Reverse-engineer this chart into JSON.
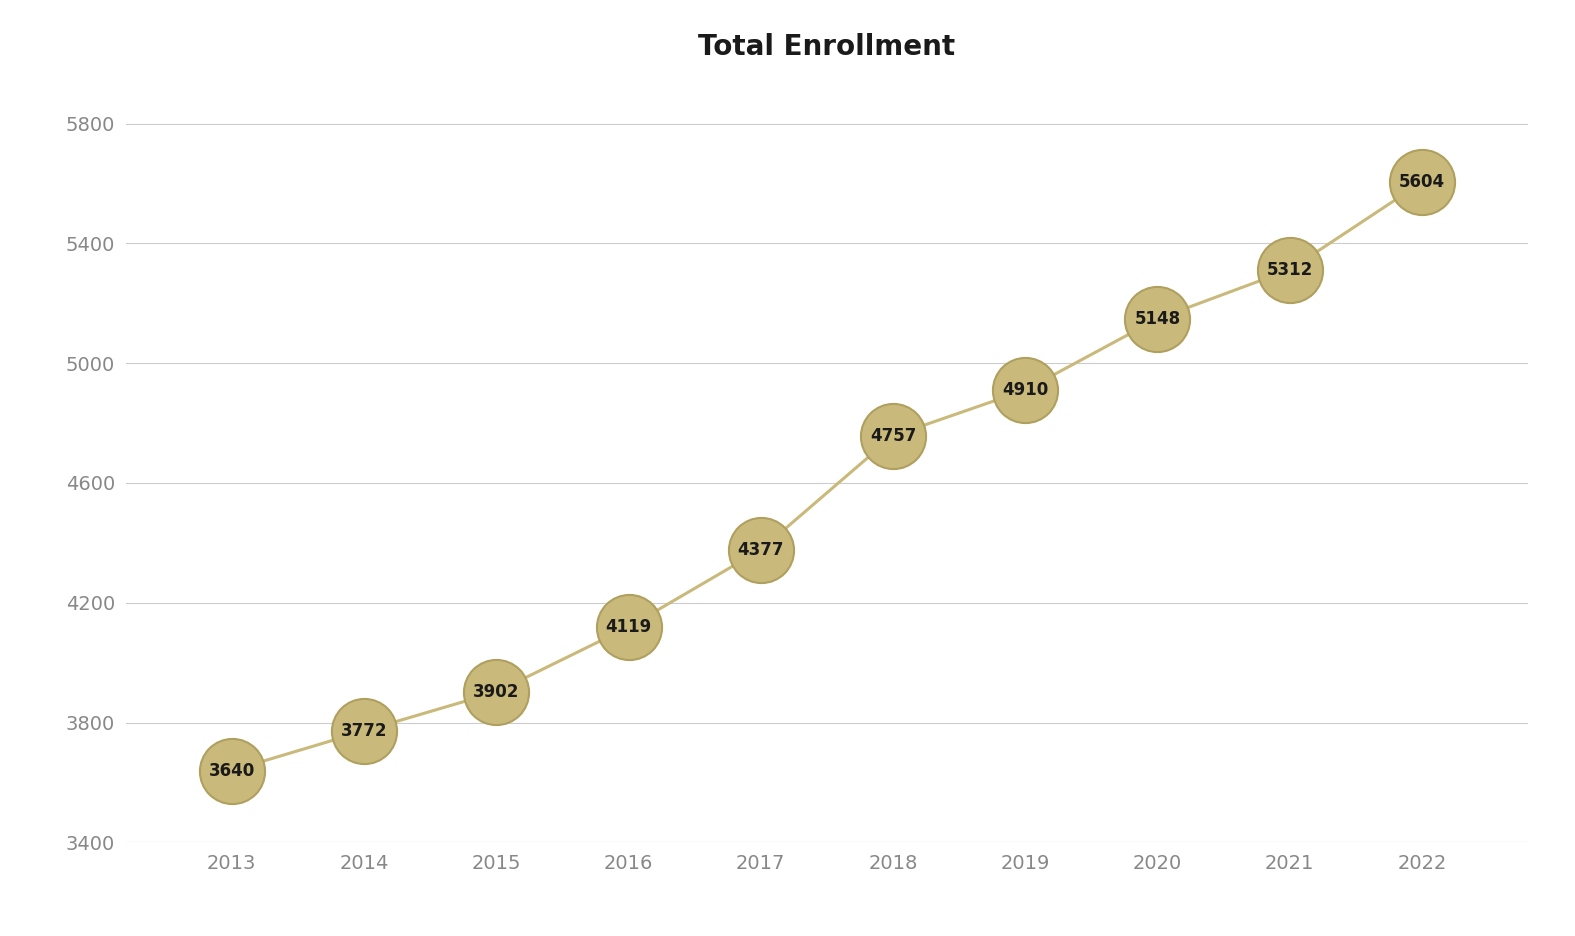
{
  "title": "Total Enrollment",
  "years": [
    2013,
    2014,
    2015,
    2016,
    2017,
    2018,
    2019,
    2020,
    2021,
    2022
  ],
  "values": [
    3640,
    3772,
    3902,
    4119,
    4377,
    4757,
    4910,
    5148,
    5312,
    5604
  ],
  "ylim": [
    3400,
    5900
  ],
  "yticks": [
    3400,
    3800,
    4200,
    4600,
    5000,
    5400,
    5800
  ],
  "line_color": "#C9B97A",
  "marker_facecolor": "#C9B97A",
  "marker_edgecolor": "#B0A060",
  "background_color": "#FFFFFF",
  "text_color": "#1a1a1a",
  "tick_color": "#888888",
  "grid_color": "#cccccc",
  "title_fontsize": 20,
  "label_fontsize": 12,
  "tick_fontsize": 14,
  "marker_size": 2200,
  "line_width": 2.2,
  "xlim": [
    2012.2,
    2022.8
  ]
}
